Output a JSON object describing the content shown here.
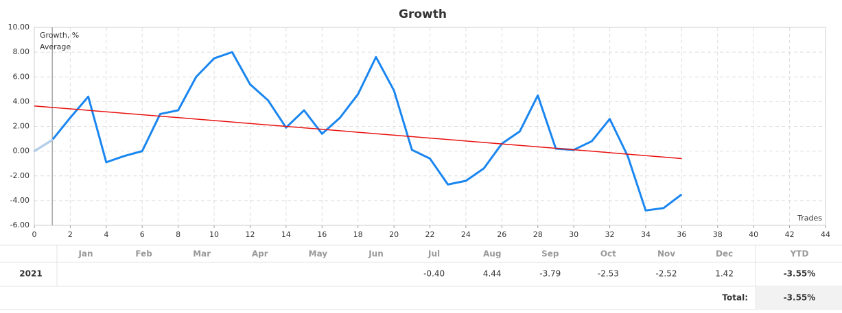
{
  "chart_data": {
    "type": "line",
    "title": "Growth",
    "x": [
      0,
      1,
      2,
      3,
      4,
      5,
      6,
      7,
      8,
      9,
      10,
      11,
      12,
      13,
      14,
      15,
      16,
      17,
      18,
      19,
      20,
      21,
      22,
      23,
      24,
      25,
      26,
      27,
      28,
      29,
      30,
      31,
      32,
      33,
      34,
      35,
      36
    ],
    "series": [
      {
        "name": "Growth, %",
        "color": "#1a86f0",
        "start_color": "#b5cde6",
        "values": [
          0,
          0.9,
          2.7,
          4.4,
          -0.9,
          -0.4,
          0,
          3.0,
          3.3,
          6.0,
          7.5,
          8.0,
          5.4,
          4.1,
          1.9,
          3.3,
          1.4,
          2.7,
          4.6,
          7.6,
          4.9,
          0.1,
          -0.6,
          -2.7,
          -2.4,
          -1.4,
          0.6,
          1.6,
          4.5,
          0.2,
          0.1,
          0.8,
          2.6,
          -0.4,
          -4.8,
          -4.6,
          -3.5
        ]
      },
      {
        "name": "Average",
        "color": "#e8110f",
        "x": [
          0,
          36
        ],
        "values": [
          3.65,
          -0.6
        ]
      }
    ],
    "xlabel": "Trades",
    "xlim": [
      0,
      44
    ],
    "xticks": [
      0,
      2,
      4,
      6,
      8,
      10,
      12,
      14,
      16,
      18,
      20,
      22,
      24,
      26,
      28,
      30,
      32,
      34,
      36,
      38,
      40,
      42,
      44
    ],
    "ylim": [
      -6,
      10
    ],
    "yticks": [
      {
        "value": -6,
        "label": "-6.00"
      },
      {
        "value": -4,
        "label": "-4.00"
      },
      {
        "value": -2,
        "label": "-2.00"
      },
      {
        "value": 0,
        "label": "0.00"
      },
      {
        "value": 2,
        "label": "2.00"
      },
      {
        "value": 4,
        "label": "4.00"
      },
      {
        "value": 6,
        "label": "6.00"
      },
      {
        "value": 8,
        "label": "8.00"
      },
      {
        "value": 10,
        "label": "10.00"
      }
    ],
    "grid": true
  },
  "table": {
    "header": [
      "Jan",
      "Feb",
      "Mar",
      "Apr",
      "May",
      "Jun",
      "Jul",
      "Aug",
      "Sep",
      "Oct",
      "Nov",
      "Dec",
      "YTD"
    ],
    "rows": [
      {
        "year": "2021",
        "values": [
          null,
          null,
          null,
          null,
          null,
          null,
          "-0.40",
          "4.44",
          "-3.79",
          "-2.53",
          "-2.52",
          "1.42"
        ],
        "ytd": "-3.55%"
      }
    ],
    "total_label": "Total:",
    "total": "-3.55%"
  }
}
